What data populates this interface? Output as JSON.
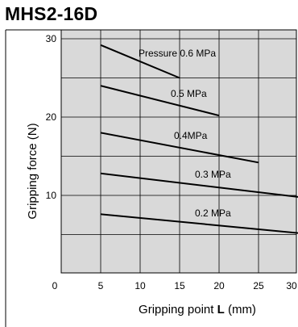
{
  "chart_data": {
    "type": "line",
    "title": "MHS2-16D",
    "xlabel_text": "Gripping point ",
    "xlabel_bold": "L",
    "xlabel_unit": " (mm)",
    "ylabel": "Gripping force  (N)",
    "xlim": [
      0,
      30
    ],
    "ylim": [
      0,
      31
    ],
    "x_ticks": [
      0,
      5,
      10,
      15,
      20,
      25,
      30
    ],
    "x_tick_labels": [
      "0",
      "5",
      "10",
      "15",
      "20",
      "25",
      "30"
    ],
    "y_ticks": [
      10,
      20,
      30
    ],
    "y_tick_labels": [
      "10",
      "20",
      "30"
    ],
    "grid": true,
    "plot_background": "#d9d9d9",
    "line_color": "#000000",
    "series": [
      {
        "name": "Pressure 0.6 MPa",
        "x": [
          5,
          15
        ],
        "y": [
          29.2,
          25.0
        ]
      },
      {
        "name": "0.5 MPa",
        "x": [
          5,
          20
        ],
        "y": [
          24.0,
          20.2
        ]
      },
      {
        "name": "0.4MPa",
        "x": [
          5,
          25
        ],
        "y": [
          18.0,
          14.2
        ]
      },
      {
        "name": "0.3 MPa",
        "x": [
          5,
          30
        ],
        "y": [
          12.8,
          9.8
        ]
      },
      {
        "name": "0.2 MPa",
        "x": [
          5,
          30
        ],
        "y": [
          7.6,
          5.2
        ]
      }
    ]
  }
}
